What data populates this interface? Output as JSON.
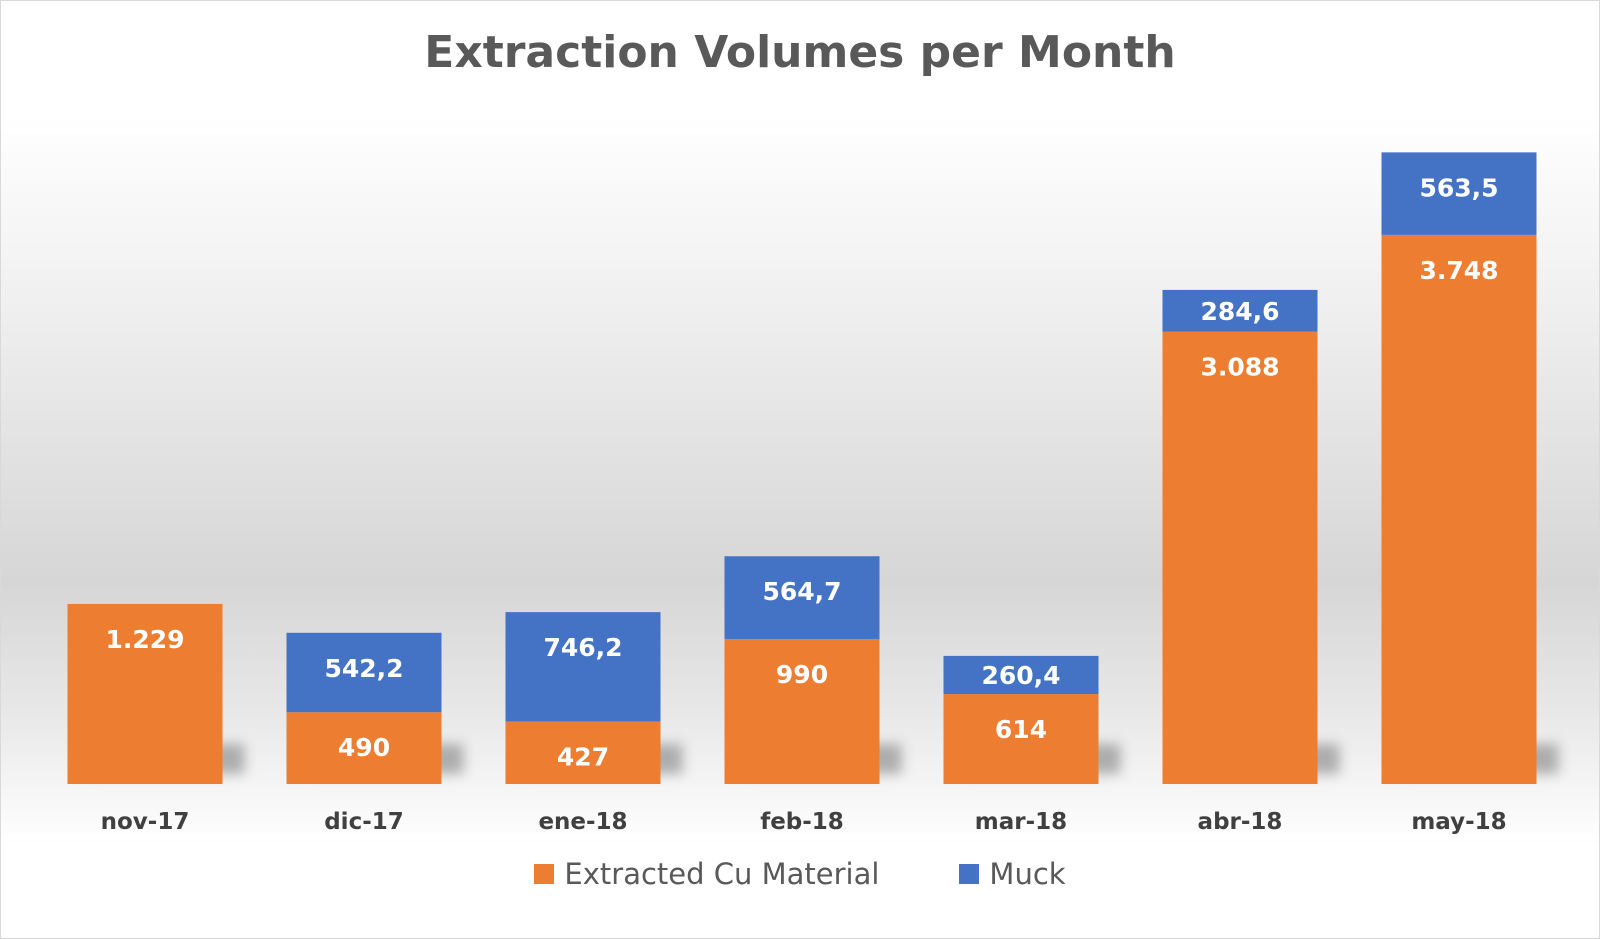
{
  "chart_data": {
    "type": "bar",
    "stacked": true,
    "title": "Extraction Volumes per Month",
    "categories": [
      "nov-17",
      "dic-17",
      "ene-18",
      "feb-18",
      "mar-18",
      "abr-18",
      "may-18"
    ],
    "series": [
      {
        "name": "Extracted Cu Material",
        "color": "#ED7D31",
        "values": [
          1229,
          490,
          427,
          990,
          614,
          3088,
          3748
        ],
        "labels": [
          "1.229",
          "490",
          "427",
          "990",
          "614",
          "3.088",
          "3.748"
        ]
      },
      {
        "name": "Muck",
        "color": "#4472C4",
        "values": [
          0,
          542.2,
          746.2,
          564.7,
          260.4,
          284.6,
          563.5
        ],
        "labels": [
          "",
          "542,2",
          "746,2",
          "564,7",
          "260,4",
          "284,6",
          "563,5"
        ]
      }
    ],
    "ylim": [
      0,
      4500
    ],
    "xlabel": "",
    "ylabel": "",
    "grid": false,
    "legend_position": "bottom"
  }
}
